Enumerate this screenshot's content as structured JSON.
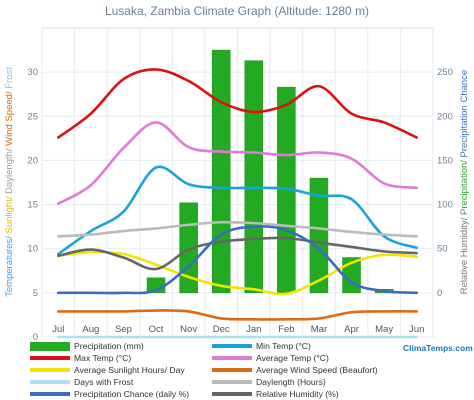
{
  "chart_data": {
    "type": "bar+line",
    "title": "Lusaka, Zambia Climate Graph (Altitude: 1280 m)",
    "left_axis": {
      "label_parts": [
        {
          "text": "Temperatures/",
          "color": "#3b9ee8"
        },
        {
          "text": " Sunlight/",
          "color": "#e0c000"
        },
        {
          "text": " Daylength/",
          "color": "#9a9a9a"
        },
        {
          "text": " Wind Speed/",
          "color": "#d46a00"
        },
        {
          "text": " Frost",
          "color": "#7ec8e3"
        }
      ],
      "ylim": [
        0,
        35
      ],
      "ticks": [
        "0",
        "5",
        "10",
        "15",
        "20",
        "25",
        "30"
      ]
    },
    "right_axis": {
      "label_parts": [
        {
          "text": "Relative Humidity/",
          "color": "#777777"
        },
        {
          "text": " Precipitation/",
          "color": "#2aa52a"
        },
        {
          "text": " Precipitation Chance",
          "color": "#3a6cc0"
        }
      ],
      "ylim": [
        -50,
        300
      ],
      "ticks": [
        "0",
        "50",
        "100",
        "150",
        "200",
        "250"
      ]
    },
    "categories": [
      "Jul",
      "Aug",
      "Sep",
      "Oct",
      "Nov",
      "Dec",
      "Jan",
      "Feb",
      "Mar",
      "Apr",
      "May",
      "Jun"
    ],
    "precipitation": {
      "name": "Precipitation (mm)",
      "color": "#22aa22",
      "values": [
        0,
        0,
        0,
        17,
        102,
        275,
        263,
        233,
        130,
        40,
        4,
        0
      ]
    },
    "series": [
      {
        "name": "Max Temp (°C)",
        "color": "#dd1111",
        "values": [
          22.6,
          25.3,
          29.2,
          30.3,
          29.0,
          26.6,
          25.5,
          26.3,
          28.4,
          25.3,
          24.3,
          22.6
        ]
      },
      {
        "name": "Average Temp (°C)",
        "color": "#e07ad8",
        "values": [
          15.1,
          17.2,
          21.4,
          24.3,
          21.5,
          21.0,
          20.9,
          20.6,
          20.9,
          20.2,
          17.4,
          16.9
        ]
      },
      {
        "name": "Min Temp (°C)",
        "color": "#19a3dd",
        "values": [
          9.4,
          12.0,
          14.2,
          19.2,
          17.3,
          16.9,
          16.9,
          16.8,
          16.0,
          15.6,
          11.4,
          10.1
        ]
      },
      {
        "name": "Daylength (Hours)",
        "color": "#bbbbbb",
        "values": [
          11.4,
          11.6,
          12.0,
          12.3,
          12.7,
          13.0,
          12.9,
          12.6,
          12.3,
          11.9,
          11.6,
          11.4
        ]
      },
      {
        "name": "Average Sunlight Hours/ Day",
        "color": "#f4e500",
        "values": [
          9.2,
          9.6,
          9.4,
          8.2,
          6.8,
          5.8,
          5.4,
          4.9,
          6.4,
          8.4,
          9.3,
          9.1
        ]
      },
      {
        "name": "Average Wind Speed (Beaufort)",
        "color": "#e06a10",
        "values": [
          2.9,
          2.9,
          2.9,
          3.0,
          2.9,
          2.1,
          2.0,
          2.0,
          2.1,
          2.8,
          2.9,
          2.9
        ]
      },
      {
        "name": "Days with Frost",
        "color": "#aee0f2",
        "values": [
          0,
          0,
          0,
          0,
          0,
          0,
          0,
          0,
          0,
          0,
          0,
          0
        ]
      },
      {
        "name": "Relative Humidity (%)",
        "color": "#666666",
        "axis": "right",
        "values": [
          42,
          49,
          40,
          27,
          49,
          58,
          61,
          62,
          57,
          52,
          47,
          45
        ]
      },
      {
        "name": "Precipitation Chance (daily %)",
        "color": "#3a6cc0",
        "axis": "right",
        "values": [
          0,
          0,
          0,
          3,
          30,
          66,
          75,
          71,
          50,
          12,
          2,
          0
        ]
      }
    ]
  },
  "legend": [
    {
      "label": "Precipitation (mm)",
      "color": "#22aa22",
      "kind": "bar"
    },
    {
      "label": "Min Temp (°C)",
      "color": "#19a3dd",
      "kind": "line"
    },
    {
      "label": "Max Temp (°C)",
      "color": "#dd1111",
      "kind": "line"
    },
    {
      "label": "Average Temp (°C)",
      "color": "#e07ad8",
      "kind": "line"
    },
    {
      "label": "Average Sunlight Hours/ Day",
      "color": "#f4e500",
      "kind": "line"
    },
    {
      "label": "Average Wind Speed (Beaufort)",
      "color": "#e06a10",
      "kind": "line"
    },
    {
      "label": "Days with Frost",
      "color": "#aee0f2",
      "kind": "line"
    },
    {
      "label": "Daylength (Hours)",
      "color": "#bbbbbb",
      "kind": "line"
    },
    {
      "label": "Precipitation Chance (daily %)",
      "color": "#3a6cc0",
      "kind": "line"
    },
    {
      "label": "Relative Humidity (%)",
      "color": "#666666",
      "kind": "line"
    }
  ],
  "brand": "ClimaTemps.com"
}
